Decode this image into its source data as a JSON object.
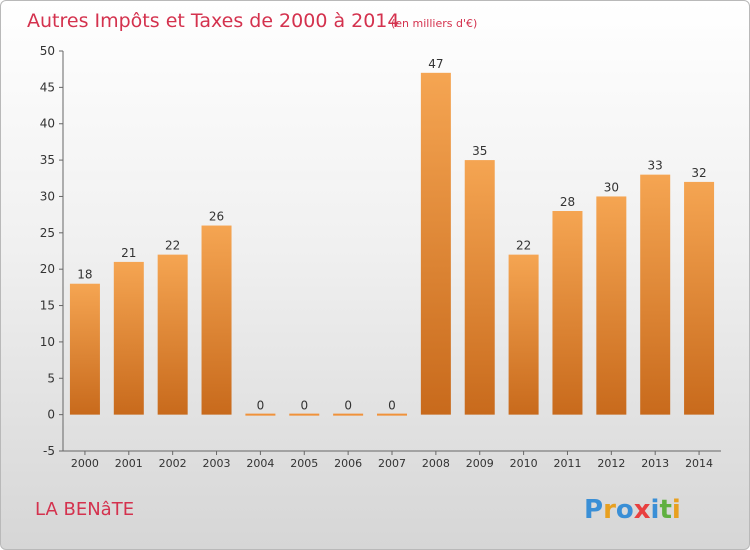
{
  "chart_data": {
    "type": "bar",
    "title": "Autres Impôts et Taxes de 2000 à 2014",
    "subtitle": "(en milliers d'€)",
    "categories": [
      "2000",
      "2001",
      "2002",
      "2003",
      "2004",
      "2005",
      "2006",
      "2007",
      "2008",
      "2009",
      "2010",
      "2011",
      "2012",
      "2013",
      "2014"
    ],
    "values": [
      18,
      21,
      22,
      26,
      0,
      0,
      0,
      0,
      47,
      35,
      22,
      28,
      30,
      33,
      32
    ],
    "yticks": [
      -5,
      0,
      5,
      10,
      15,
      20,
      25,
      30,
      35,
      40,
      45,
      50
    ],
    "ylim": [
      -5,
      50
    ],
    "grid": false,
    "bar_color": "#f0923a",
    "bar_color_dark": "#c86a1c"
  },
  "place_name": "LA BENâTE",
  "logo": {
    "letters": [
      "P",
      "r",
      "o",
      "x",
      "i",
      "t",
      "i"
    ],
    "colors": [
      "#3a8fd6",
      "#e8a020",
      "#3a8fd6",
      "#e84040",
      "#3a8fd6",
      "#60b040",
      "#e8a020"
    ]
  }
}
